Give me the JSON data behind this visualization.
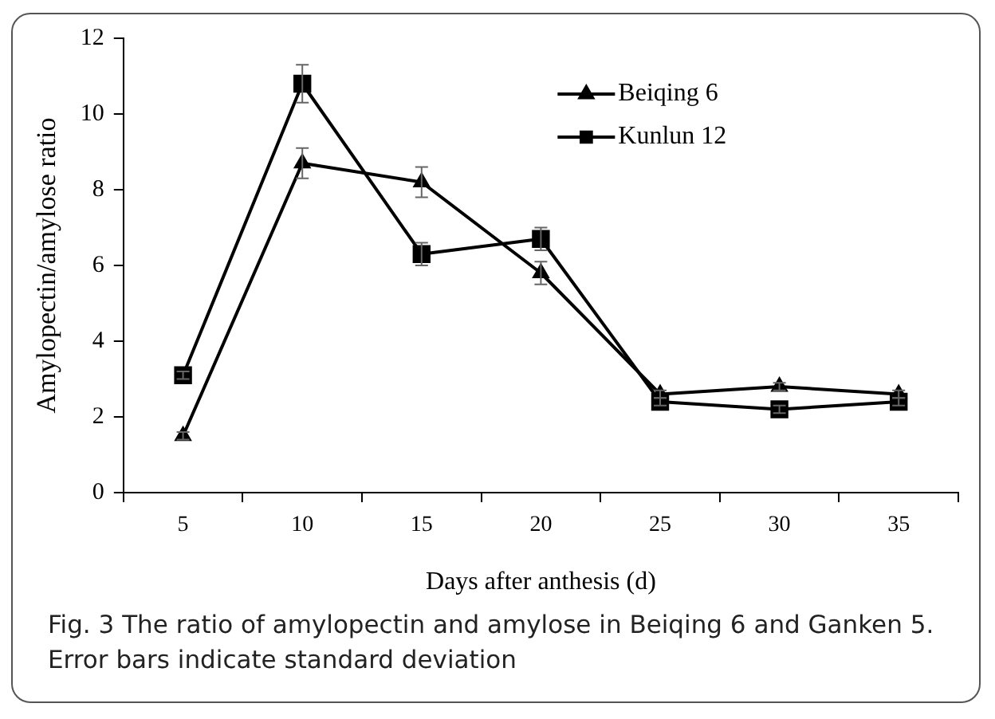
{
  "chart_data": {
    "type": "line",
    "xlabel": "Days after anthesis (d)",
    "ylabel": "Amylopectin/amylose ratio",
    "categories": [
      "5",
      "10",
      "15",
      "20",
      "25",
      "30",
      "35"
    ],
    "series": [
      {
        "name": "Beiqing 6",
        "color": "#000000",
        "marker": "triangle",
        "values": [
          1.5,
          8.7,
          8.2,
          5.8,
          2.6,
          2.8,
          2.6
        ],
        "errors": [
          0.1,
          0.4,
          0.4,
          0.3,
          0.1,
          0.1,
          0.1
        ]
      },
      {
        "name": "Kunlun 12",
        "color": "#000000",
        "marker": "square",
        "values": [
          3.1,
          10.8,
          6.3,
          6.7,
          2.4,
          2.2,
          2.4
        ],
        "errors": [
          0.1,
          0.5,
          0.3,
          0.3,
          0.1,
          0.1,
          0.1
        ]
      }
    ],
    "ylim": [
      0,
      12
    ],
    "yticks": [
      0,
      2,
      4,
      6,
      8,
      10,
      12
    ],
    "grid": false,
    "legend": "top",
    "line_style": "solid",
    "annotations": [
      "Fig. 3  The ratio of amylopectin and amylose in Beiqing 6 and Ganken 5. Error bars indicate standard deviation"
    ]
  }
}
